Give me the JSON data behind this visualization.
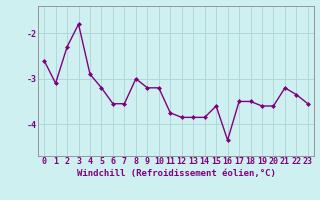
{
  "x": [
    0,
    1,
    2,
    3,
    4,
    5,
    6,
    7,
    8,
    9,
    10,
    11,
    12,
    13,
    14,
    15,
    16,
    17,
    18,
    19,
    20,
    21,
    22,
    23
  ],
  "y": [
    -2.6,
    -3.1,
    -2.3,
    -1.8,
    -2.9,
    -3.2,
    -3.55,
    -3.55,
    -3.0,
    -3.2,
    -3.2,
    -3.75,
    -3.85,
    -3.85,
    -3.85,
    -3.6,
    -4.35,
    -3.5,
    -3.5,
    -3.6,
    -3.6,
    -3.2,
    -3.35,
    -3.55
  ],
  "line_color": "#800080",
  "marker": "D",
  "marker_size": 2,
  "bg_color": "#cff0f0",
  "grid_color": "#b0d8d8",
  "xlabel": "Windchill (Refroidissement éolien,°C)",
  "yticks": [
    -4,
    -3,
    -2
  ],
  "ylim": [
    -4.7,
    -1.4
  ],
  "xlim": [
    -0.5,
    23.5
  ],
  "xtick_labels": [
    "0",
    "1",
    "2",
    "3",
    "4",
    "5",
    "6",
    "7",
    "8",
    "9",
    "10",
    "11",
    "12",
    "13",
    "14",
    "15",
    "16",
    "17",
    "18",
    "19",
    "20",
    "21",
    "22",
    "23"
  ],
  "xlabel_fontsize": 6.5,
  "tick_fontsize": 6,
  "line_width": 1.0,
  "label_color": "#800080"
}
